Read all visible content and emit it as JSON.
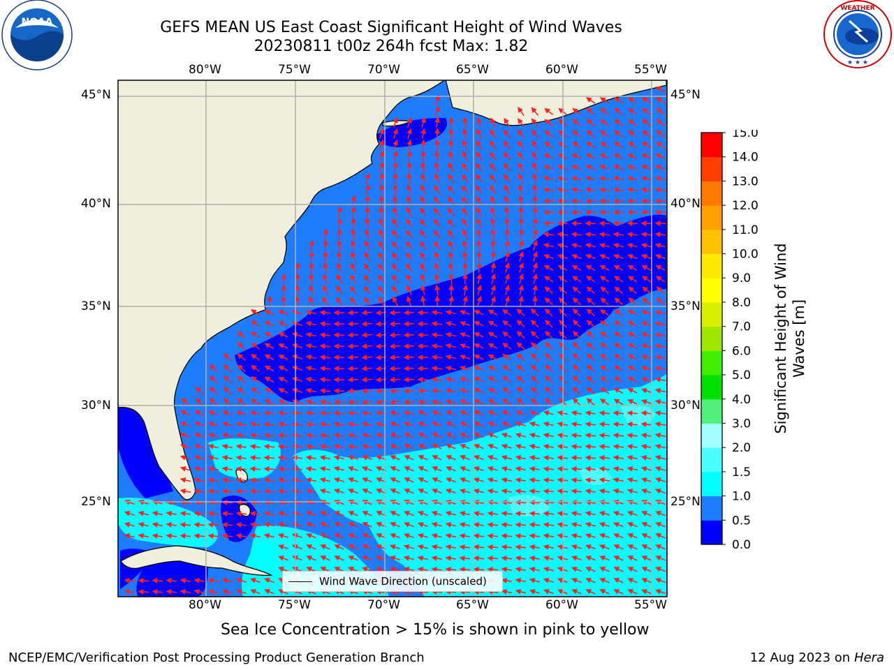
{
  "header": {
    "title_line1": "GEFS MEAN US East Coast Significant Height of Wind Waves",
    "title_line2": "20230811 t00z 264h fcst   Max: 1.82"
  },
  "logos": {
    "left": {
      "name": "noaa-logo",
      "text": "NOAA",
      "ring_text": "NATIONAL OCEANIC AND ATMOSPHERIC ADMINISTRATION • U.S. DEPARTMENT OF COMMERCE"
    },
    "right": {
      "name": "nws-logo",
      "ring_text": "NATIONAL WEATHER SERVICE"
    }
  },
  "map": {
    "lon_ticks": [
      "80°W",
      "75°W",
      "70°W",
      "65°W",
      "60°W",
      "55°W"
    ],
    "lat_ticks": [
      "45°N",
      "40°N",
      "35°N",
      "30°N",
      "25°N"
    ],
    "extent": {
      "lon": [
        -85,
        -54
      ],
      "lat": [
        20.5,
        46
      ]
    },
    "colors": {
      "land": "#efefdc",
      "arrow": "#ff2020",
      "grid": "#b0b0b0"
    }
  },
  "legend": {
    "label": "Wind Wave Direction (unscaled)"
  },
  "colorbar": {
    "label": "Significant Height of Wind Waves [m]",
    "levels": [
      "0.0",
      "0.5",
      "1.0",
      "1.5",
      "2.0",
      "3.0",
      "4.0",
      "5.0",
      "6.0",
      "7.0",
      "8.0",
      "9.0",
      "10.0",
      "11.0",
      "12.0",
      "13.0",
      "14.0",
      "15.0"
    ],
    "colors": [
      "#0000ff",
      "#1e7cff",
      "#00ffff",
      "#4cffff",
      "#a0ffff",
      "#50f07a",
      "#00e000",
      "#40ee00",
      "#a0e800",
      "#d8f000",
      "#ffff00",
      "#ffea00",
      "#ffc000",
      "#ffa000",
      "#ff7800",
      "#ff4000",
      "#ff0000"
    ]
  },
  "note": "Sea Ice Concentration > 15% is shown in pink to yellow",
  "footer": {
    "left": "NCEP/EMC/Verification Post Processing Product Generation Branch",
    "date": "12 Aug 2023 on",
    "machine": "Hera"
  }
}
